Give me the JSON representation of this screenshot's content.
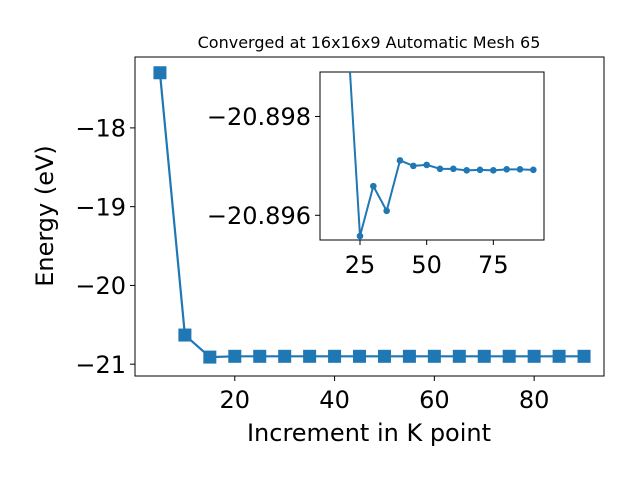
{
  "chart_data": [
    {
      "type": "line",
      "title": "Converged at 16x16x9 Automatic Mesh 65",
      "xlabel": "Increment in K point",
      "ylabel": "Energy (eV)",
      "xlim": [
        0,
        94
      ],
      "ylim": [
        -21.15,
        -17.1
      ],
      "xticks": [
        20,
        40,
        60,
        80
      ],
      "yticks": [
        -18,
        -19,
        -20,
        -21
      ],
      "ytick_labels": [
        "−18",
        "−19",
        "−20",
        "−21"
      ],
      "marker": "square",
      "color": "#1f77b4",
      "grid": false,
      "series": [
        {
          "x": [
            5,
            10,
            15,
            20,
            25,
            30,
            35,
            40,
            45,
            50,
            55,
            60,
            65,
            70,
            75,
            80,
            85,
            90
          ],
          "y": [
            -17.3,
            -20.63,
            -20.91,
            -20.9,
            -20.9,
            -20.9,
            -20.9,
            -20.9,
            -20.9,
            -20.9,
            -20.9,
            -20.9,
            -20.9,
            -20.9,
            -20.9,
            -20.9,
            -20.9,
            -20.9
          ]
        }
      ]
    },
    {
      "type": "line",
      "role": "inset",
      "xlim": [
        10,
        94
      ],
      "ylim": [
        -20.8955,
        -20.8989
      ],
      "xticks": [
        25,
        50,
        75
      ],
      "yticks": [
        -20.898,
        -20.896
      ],
      "ytick_labels": [
        "−20.898",
        "−20.896"
      ],
      "marker": "circle",
      "color": "#1f77b4",
      "series": [
        {
          "x": [
            20,
            25,
            30,
            35,
            40,
            45,
            50,
            55,
            60,
            65,
            70,
            75,
            80,
            85,
            90
          ],
          "y": [
            -20.9,
            -20.89558,
            -20.89659,
            -20.89609,
            -20.89711,
            -20.897,
            -20.89702,
            -20.89694,
            -20.89694,
            -20.89691,
            -20.89692,
            -20.89691,
            -20.89693,
            -20.89693,
            -20.89692
          ]
        }
      ]
    }
  ]
}
